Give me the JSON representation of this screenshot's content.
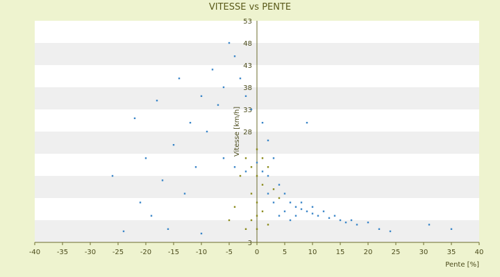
{
  "chart_data": {
    "type": "scatter",
    "title": "VITESSE vs PENTE",
    "xlabel": "Pente [%]",
    "ylabel": "Vitesse [km/h]",
    "xlim": [
      -40,
      40
    ],
    "ylim": [
      3,
      53
    ],
    "x_ticks": [
      -40,
      -35,
      -30,
      -25,
      -20,
      -15,
      -10,
      -5,
      0,
      5,
      10,
      15,
      20,
      25,
      30,
      35,
      40
    ],
    "y_ticks": [
      3,
      8,
      13,
      18,
      23,
      28,
      33,
      38,
      43,
      48,
      53
    ],
    "y_tick_labels": [
      "3",
      "",
      "",
      "",
      "",
      "28",
      "33",
      "38",
      "43",
      "48",
      "53"
    ],
    "grid": "horizontal alternating bands",
    "legend": "none",
    "colors": {
      "background": "#eef3cf",
      "plot_band_light": "#ffffff",
      "plot_band_dark": "#efefef",
      "series_blue": "#3a86c8",
      "series_olive": "#8a8a1a",
      "axis": "#6b6b2b"
    },
    "series": [
      {
        "color": "#3a86c8",
        "points": [
          [
            -24,
            5.5
          ],
          [
            -21,
            12
          ],
          [
            -26,
            18
          ],
          [
            -20,
            22
          ],
          [
            -22,
            31
          ],
          [
            -14,
            40
          ],
          [
            -18,
            35
          ],
          [
            -15,
            25
          ],
          [
            -12,
            30
          ],
          [
            -10,
            36
          ],
          [
            -8,
            42
          ],
          [
            -9,
            28
          ],
          [
            -11,
            20
          ],
          [
            -7,
            34
          ],
          [
            -6,
            38
          ],
          [
            -5,
            48
          ],
          [
            -4,
            45
          ],
          [
            -3,
            40
          ],
          [
            -2,
            36
          ],
          [
            -1,
            33
          ],
          [
            1,
            30
          ],
          [
            2,
            26
          ],
          [
            3,
            22
          ],
          [
            -6,
            22
          ],
          [
            -4,
            20
          ],
          [
            -2,
            19
          ],
          [
            0,
            21
          ],
          [
            1,
            19
          ],
          [
            2,
            18
          ],
          [
            4,
            16
          ],
          [
            5,
            14
          ],
          [
            6,
            12
          ],
          [
            7,
            11
          ],
          [
            8,
            10.5
          ],
          [
            9,
            10
          ],
          [
            10,
            9.5
          ],
          [
            11,
            9
          ],
          [
            12,
            10
          ],
          [
            13,
            8.5
          ],
          [
            14,
            9
          ],
          [
            15,
            8
          ],
          [
            16,
            7.5
          ],
          [
            17,
            8
          ],
          [
            18,
            7
          ],
          [
            20,
            7.5
          ],
          [
            22,
            6
          ],
          [
            24,
            5.5
          ],
          [
            31,
            7
          ],
          [
            35,
            6
          ],
          [
            9,
            30
          ],
          [
            -16,
            6
          ],
          [
            -10,
            5
          ],
          [
            -13,
            14
          ],
          [
            -17,
            17
          ],
          [
            -19,
            9
          ],
          [
            6,
            8
          ],
          [
            4,
            9
          ],
          [
            3,
            12
          ],
          [
            8,
            12
          ],
          [
            10,
            11
          ],
          [
            5,
            10
          ],
          [
            7,
            9
          ],
          [
            2,
            14
          ]
        ]
      },
      {
        "color": "#8a8a1a",
        "points": [
          [
            -2,
            22
          ],
          [
            -1,
            20
          ],
          [
            0,
            24
          ],
          [
            1,
            22
          ],
          [
            2,
            20
          ],
          [
            -3,
            18
          ],
          [
            0,
            18
          ],
          [
            1,
            16
          ],
          [
            -1,
            14
          ],
          [
            0,
            12
          ],
          [
            1,
            10
          ],
          [
            -1,
            8
          ],
          [
            0,
            9
          ],
          [
            2,
            7
          ],
          [
            -2,
            6
          ],
          [
            3,
            15
          ],
          [
            4,
            13
          ],
          [
            -4,
            11
          ],
          [
            -5,
            8
          ],
          [
            0,
            6
          ]
        ]
      }
    ]
  }
}
